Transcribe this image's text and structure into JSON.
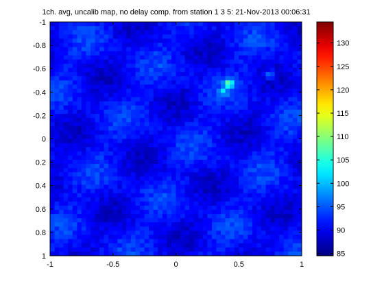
{
  "chart_data": {
    "type": "heatmap",
    "title": "1ch. avg, uncalib map, no delay comp. from station 1  3  5: 21-Nov-2013 00:06:31",
    "xlabel": "",
    "ylabel": "",
    "xlim": [
      -1,
      1
    ],
    "ylim": [
      -1,
      1
    ],
    "y_reversed": true,
    "grid": false,
    "x_ticks": [
      -1,
      -0.5,
      0,
      0.5,
      1
    ],
    "x_tick_labels": [
      "-1",
      "-0.5",
      "0",
      "0.5",
      "1"
    ],
    "y_ticks": [
      -1,
      -0.8,
      -0.6,
      -0.4,
      -0.2,
      0,
      0.2,
      0.4,
      0.6,
      0.8,
      1
    ],
    "y_tick_labels": [
      "-1",
      "-0.8",
      "-0.6",
      "-0.4",
      "-0.2",
      "0",
      "0.2",
      "0.4",
      "0.6",
      "0.8",
      "1"
    ],
    "colormap": "jet",
    "colorbar": {
      "clim": [
        84.5,
        134.5
      ],
      "ticks": [
        85,
        90,
        95,
        100,
        105,
        110,
        115,
        120,
        125,
        130
      ],
      "tick_labels": [
        "85",
        "90",
        "95",
        "100",
        "105",
        "110",
        "115",
        "120",
        "125",
        "130"
      ],
      "placement": "right"
    },
    "background_level": 91,
    "features": [
      {
        "x": 0.42,
        "y": -0.47,
        "peak_value": 106
      },
      {
        "x": 0.75,
        "y": -0.55,
        "peak_value": 100
      },
      {
        "x": 0.37,
        "y": -0.4,
        "peak_value": 98
      }
    ]
  }
}
